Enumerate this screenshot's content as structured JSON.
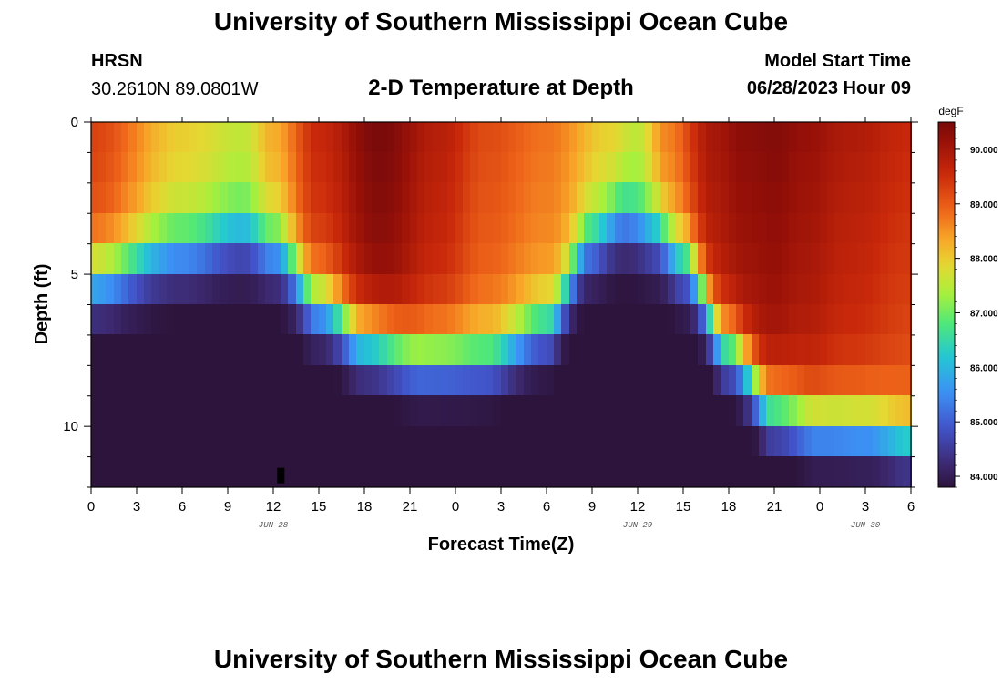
{
  "header": {
    "title": "University of Southern Mississippi Ocean Cube",
    "station": "HRSN",
    "coordinates": "30.2610N  89.0801W",
    "plot_title": "2-D Temperature at Depth",
    "model_start_label": "Model Start Time",
    "model_start_value": "06/28/2023 Hour 09"
  },
  "footer": {
    "title": "University of Southern Mississippi Ocean Cube"
  },
  "chart_data": {
    "type": "heatmap",
    "title": "2-D Temperature at Depth",
    "xlabel": "Forecast Time(Z)",
    "ylabel": "Depth (ft)",
    "x_range_hours_from_jun28_00Z": [
      0,
      54
    ],
    "y_range_ft": [
      0,
      12
    ],
    "x_tick_labels": [
      "0",
      "3",
      "6",
      "9",
      "12",
      "15",
      "18",
      "21",
      "0",
      "3",
      "6",
      "9",
      "12",
      "15",
      "18",
      "21",
      "0",
      "3",
      "6"
    ],
    "y_tick_values": [
      0,
      5,
      10
    ],
    "y_tick_labels": [
      "0",
      "5",
      "10"
    ],
    "day_labels": [
      {
        "text": "JUN 28",
        "hour": 12
      },
      {
        "text": "JUN 29",
        "hour": 36
      },
      {
        "text": "JUN 30",
        "hour": 51
      }
    ],
    "depth_levels_ft": [
      0.5,
      1.5,
      2.5,
      3.5,
      4.5,
      5.5,
      6.5,
      7.5,
      8.5,
      9.5,
      10.5,
      11.5
    ],
    "surface_temp_degF": {
      "hours": [
        0,
        6,
        10,
        12,
        15,
        19,
        23,
        26,
        30,
        34,
        36,
        38,
        41,
        43,
        45,
        47,
        50,
        54
      ],
      "values": [
        89.3,
        88.0,
        87.6,
        88.3,
        89.6,
        90.5,
        89.8,
        89.2,
        88.8,
        88.0,
        87.6,
        88.7,
        90.0,
        90.3,
        90.4,
        90.2,
        89.9,
        89.6
      ]
    },
    "thermocline_depth_ft": {
      "hours": [
        0,
        6,
        10,
        12,
        15,
        18,
        22,
        26,
        30,
        33,
        35,
        37,
        39,
        42,
        45,
        48,
        51,
        54
      ],
      "values": [
        5.2,
        4.3,
        3.8,
        4.2,
        6.0,
        7.2,
        7.8,
        7.8,
        6.8,
        4.0,
        3.2,
        3.6,
        4.6,
        7.5,
        9.5,
        10.0,
        10.1,
        10.5
      ]
    },
    "thermocline_thickness_ft": 2.6,
    "bottom_temp_degF": 84.0,
    "colorbar": {
      "unit": "degF",
      "min": 83.8,
      "max": 90.5,
      "ticks": [
        84.0,
        85.0,
        86.0,
        87.0,
        88.0,
        89.0,
        90.0
      ],
      "tick_labels": [
        "84.000",
        "85.000",
        "86.000",
        "87.000",
        "88.000",
        "89.000",
        "90.000"
      ]
    },
    "marker": {
      "hour": 12.5,
      "depth_ft": 11.6,
      "note": "small black bar at bottom of plot"
    }
  }
}
